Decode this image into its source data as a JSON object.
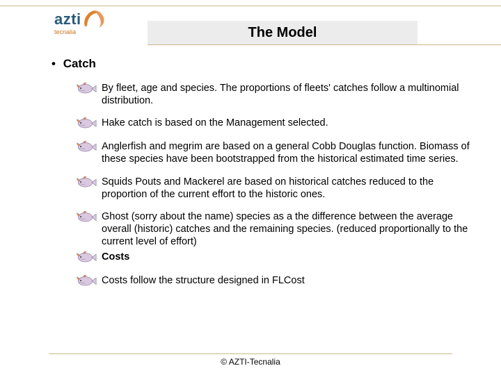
{
  "logo": {
    "main": "azti",
    "sub": "tecnalia",
    "fill_orange": "#e08028",
    "fill_blue": "#2a5a7a"
  },
  "title": "The Model",
  "main_bullet": "Catch",
  "items": [
    {
      "text": " By fleet, age and species. The proportions of fleets' catches follow a multinomial distribution.",
      "bold": false
    },
    {
      "text": "Hake catch is based on the Management selected.",
      "bold": false
    },
    {
      "text": "Anglerfish and megrim are based on a general Cobb Douglas function. Biomass of these species have been bootstrapped from the historical estimated time series.",
      "bold": false
    },
    {
      "text": "Squids Pouts and Mackerel are based on historical catches reduced to the proportion of the current effort to the historic ones.",
      "bold": false
    },
    {
      "text": "Ghost (sorry about the name) species as a the difference between the average overall (historic) catches and the remaining species. (reduced proportionally to the current level of effort)",
      "bold": false
    },
    {
      "text": "Costs",
      "bold": true
    },
    {
      "text": "Costs follow the structure designed in FLCost",
      "bold": false
    }
  ],
  "footer": "© AZTI-Tecnalia",
  "colors": {
    "line": "#c9b88a",
    "fish_body": "#d9c8e0",
    "fish_orange": "#e09050",
    "fish_outline": "#8a7aa0"
  }
}
